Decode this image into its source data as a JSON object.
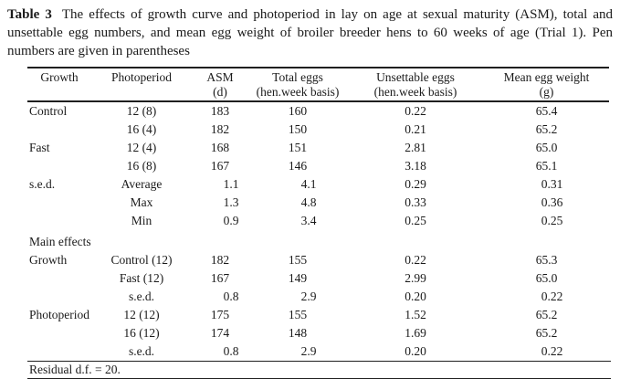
{
  "caption": {
    "label": "Table 3",
    "text": "The effects of growth curve and photoperiod in lay on age at sexual maturity (ASM), total and unsettable egg numbers, and mean egg weight of broiler breeder hens to 60 weeks of age (Trial 1). Pen numbers are given in parentheses"
  },
  "table": {
    "columns": [
      {
        "label": "Growth",
        "sub": ""
      },
      {
        "label": "Photoperiod",
        "sub": ""
      },
      {
        "label": "ASM",
        "sub": "(d)"
      },
      {
        "label": "Total eggs",
        "sub": "(hen.week basis)"
      },
      {
        "label": "Unsettable eggs",
        "sub": "(hen.week basis)"
      },
      {
        "label": "Mean egg weight",
        "sub": "(g)"
      }
    ],
    "rows": [
      {
        "cells": [
          "Control",
          "12 (8)",
          "183",
          "160",
          "0.22",
          "65.4"
        ]
      },
      {
        "cells": [
          "",
          "16 (4)",
          "182",
          "150",
          "0.21",
          "65.2"
        ]
      },
      {
        "cells": [
          "Fast",
          "12 (4)",
          "168",
          "151",
          "2.81",
          "65.0"
        ]
      },
      {
        "cells": [
          "",
          "16 (8)",
          "167",
          "146",
          "3.18",
          "65.1"
        ]
      },
      {
        "cells": [
          "s.e.d.",
          "Average",
          "1.1",
          "4.1",
          "0.29",
          "0.31"
        ]
      },
      {
        "cells": [
          "",
          "Max",
          "1.3",
          "4.8",
          "0.33",
          "0.36"
        ]
      },
      {
        "cells": [
          "",
          "Min",
          "0.9",
          "3.4",
          "0.25",
          "0.25"
        ]
      },
      {
        "section": "Main effects"
      },
      {
        "cells": [
          "Growth",
          "Control (12)",
          "182",
          "155",
          "0.22",
          "65.3"
        ]
      },
      {
        "cells": [
          "",
          "Fast (12)",
          "167",
          "149",
          "2.99",
          "65.0"
        ]
      },
      {
        "cells": [
          "",
          "s.e.d.",
          "0.8",
          "2.9",
          "0.20",
          "0.22"
        ]
      },
      {
        "cells": [
          "Photoperiod",
          "12 (12)",
          "175",
          "155",
          "1.52",
          "65.2"
        ]
      },
      {
        "cells": [
          "",
          "16 (12)",
          "174",
          "148",
          "1.69",
          "65.2"
        ]
      },
      {
        "cells": [
          "",
          "s.e.d.",
          "0.8",
          "2.9",
          "0.20",
          "0.22"
        ]
      }
    ],
    "footnote": "Residual d.f. = 20."
  }
}
